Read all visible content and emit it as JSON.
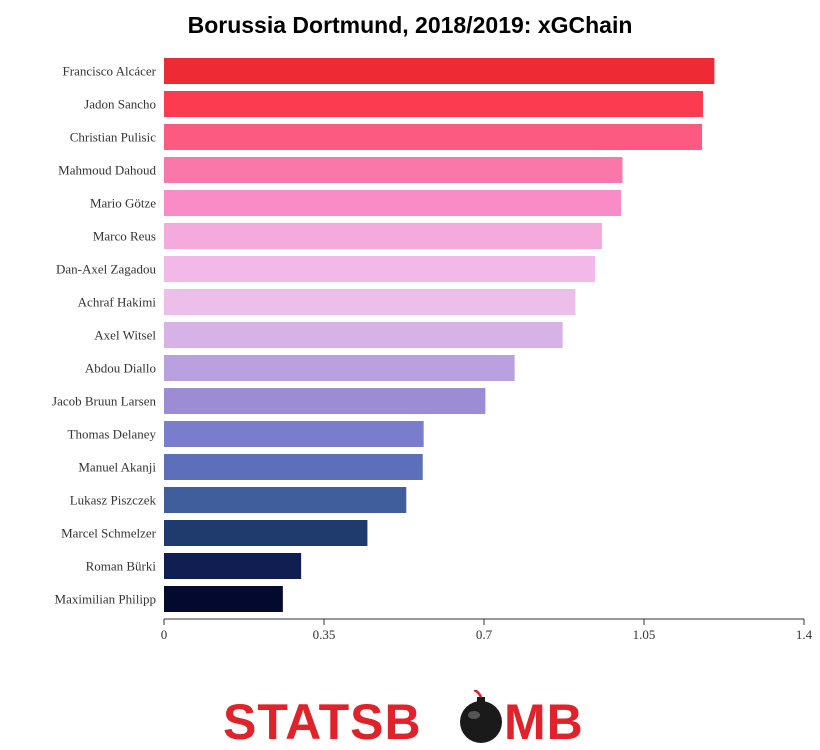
{
  "chart_data": {
    "type": "bar",
    "orientation": "horizontal",
    "title": "Borussia Dortmund, 2018/2019: xGChain",
    "categories": [
      "Francisco Alcácer",
      "Jadon Sancho",
      "Christian Pulisic",
      "Mahmoud Dahoud",
      "Mario Götze",
      "Marco Reus",
      "Dan-Axel Zagadou",
      "Achraf Hakimi",
      "Axel Witsel",
      "Abdou Diallo",
      "Jacob Bruun Larsen",
      "Thomas Delaney",
      "Manuel Akanji",
      "Lukasz Piszczek",
      "Marcel Schmelzer",
      "Roman Bürki",
      "Maximilian Philipp"
    ],
    "values": [
      1.204,
      1.179,
      1.177,
      1.003,
      1.0,
      0.958,
      0.943,
      0.9,
      0.872,
      0.767,
      0.703,
      0.568,
      0.566,
      0.53,
      0.445,
      0.3,
      0.26
    ],
    "colors": [
      "#ee2b35",
      "#fc3a50",
      "#fd5a82",
      "#fa77aa",
      "#f98bc6",
      "#f5aade",
      "#f2b8e7",
      "#ecbfeb",
      "#d6b2e6",
      "#b9a0df",
      "#9c8cd4",
      "#7a7ccc",
      "#5d6fbb",
      "#405d9c",
      "#1f3a6d",
      "#101e52",
      "#04092e"
    ],
    "xlim": [
      0,
      1.4
    ],
    "xticks": [
      "0",
      "0.35",
      "0.7",
      "1.05",
      "1.4"
    ],
    "xtick_values": [
      0,
      0.35,
      0.7,
      1.05,
      1.4
    ],
    "xlabel": "",
    "ylabel": "",
    "grid": false,
    "legend": "none"
  },
  "logo": {
    "text_left": "STATSB",
    "text_right": "MB",
    "bomb_icon": "bomb-icon",
    "color": "#e0222a"
  }
}
